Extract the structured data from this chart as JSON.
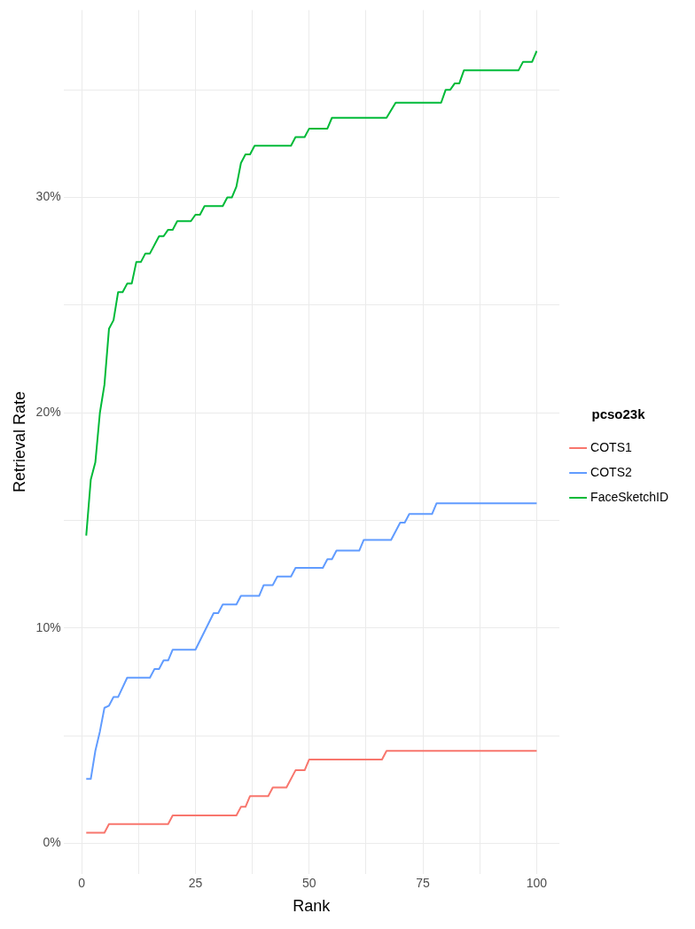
{
  "chart_data": {
    "type": "line",
    "xlabel": "Rank",
    "ylabel": "Retrieval Rate",
    "legend_title": "pcso23k",
    "legend": "right",
    "grid": true,
    "marker": "none",
    "line_style": "solid",
    "xlim": [
      -4,
      105
    ],
    "xticks": [
      0,
      {
        "value": 12.5,
        "label": null
      },
      25,
      {
        "value": 37.5,
        "label": null
      },
      50,
      {
        "value": 62.5,
        "label": null
      },
      75,
      {
        "value": 87.5,
        "label": null
      },
      100
    ],
    "ylim": [
      -1.4,
      38.7
    ],
    "yticks": [
      {
        "value": 0,
        "label": "0%"
      },
      {
        "value": 5,
        "label": null
      },
      {
        "value": 10,
        "label": "10%"
      },
      {
        "value": 15,
        "label": null
      },
      {
        "value": 20,
        "label": "20%"
      },
      {
        "value": 25,
        "label": null
      },
      {
        "value": 30,
        "label": "30%"
      },
      {
        "value": 35,
        "label": null
      }
    ],
    "series": [
      {
        "name": "COTS1",
        "color": "#f8766d",
        "x": [
          1,
          5,
          6,
          19,
          20,
          34,
          35,
          36,
          37,
          41,
          42,
          45,
          47,
          49,
          50,
          66,
          67,
          100
        ],
        "values": [
          0.5,
          0.5,
          0.9,
          0.9,
          1.3,
          1.3,
          1.7,
          1.7,
          2.2,
          2.2,
          2.6,
          2.6,
          3.4,
          3.4,
          3.9,
          3.9,
          4.3,
          4.3
        ]
      },
      {
        "name": "COTS2",
        "color": "#619cff",
        "x": [
          1,
          2,
          3,
          4,
          5,
          6,
          7,
          8,
          10,
          15,
          16,
          17,
          18,
          19,
          20,
          25,
          29,
          30,
          31,
          34,
          35,
          39,
          40,
          42,
          43,
          46,
          47,
          53,
          54,
          55,
          56,
          61,
          62,
          68,
          70,
          71,
          72,
          77,
          78,
          100
        ],
        "values": [
          3.0,
          3.0,
          4.3,
          5.2,
          6.3,
          6.4,
          6.8,
          6.8,
          7.7,
          7.7,
          8.1,
          8.1,
          8.5,
          8.5,
          9.0,
          9.0,
          10.7,
          10.7,
          11.1,
          11.1,
          11.5,
          11.5,
          12.0,
          12.0,
          12.4,
          12.4,
          12.8,
          12.8,
          13.2,
          13.2,
          13.6,
          13.6,
          14.1,
          14.1,
          14.9,
          14.9,
          15.3,
          15.3,
          15.8,
          15.8
        ]
      },
      {
        "name": "FaceSketchID",
        "color": "#00ba38",
        "x": [
          1,
          2,
          3,
          4,
          5,
          6,
          7,
          8,
          9,
          10,
          11,
          12,
          13,
          14,
          15,
          17,
          18,
          19,
          20,
          21,
          24,
          25,
          26,
          27,
          31,
          32,
          33,
          34,
          35,
          36,
          37,
          38,
          46,
          47,
          49,
          50,
          54,
          55,
          67,
          69,
          79,
          80,
          81,
          82,
          83,
          84,
          96,
          97,
          99,
          100
        ],
        "values": [
          14.3,
          16.9,
          17.7,
          20.0,
          21.3,
          23.9,
          24.3,
          25.6,
          25.6,
          26.0,
          26.0,
          27.0,
          27.0,
          27.4,
          27.4,
          28.2,
          28.2,
          28.5,
          28.5,
          28.9,
          28.9,
          29.2,
          29.2,
          29.6,
          29.6,
          30.0,
          30.0,
          30.5,
          31.6,
          32.0,
          32.0,
          32.4,
          32.4,
          32.8,
          32.8,
          33.2,
          33.2,
          33.7,
          33.7,
          34.4,
          34.4,
          35.0,
          35.0,
          35.3,
          35.3,
          35.9,
          35.9,
          36.3,
          36.3,
          36.8
        ]
      }
    ]
  }
}
